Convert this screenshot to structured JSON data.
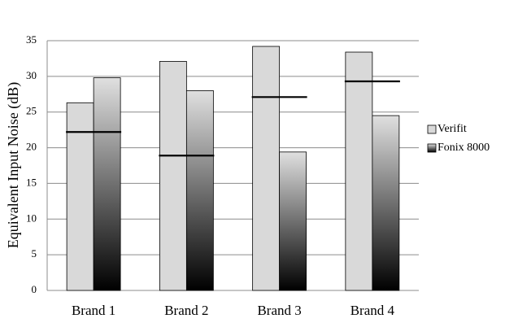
{
  "chart_data": {
    "type": "bar",
    "y_label": "Equivalent Input Noise (dB)",
    "categories": [
      "Brand 1",
      "Brand 2",
      "Brand 3",
      "Brand 4"
    ],
    "series": [
      {
        "name": "Verifit",
        "color": "#d9d9d9",
        "values": [
          26.3,
          32.1,
          34.2,
          33.4
        ]
      },
      {
        "name": "Fonix 8000",
        "color": [
          "#e0e0e0",
          "#000000"
        ],
        "values": [
          29.8,
          28.0,
          19.4,
          24.5
        ]
      }
    ],
    "reference_lines": {
      "color": "#000000",
      "values": [
        22.2,
        18.9,
        27.1,
        29.3
      ]
    },
    "ylim": [
      0,
      35
    ],
    "yticks": [
      0,
      5,
      10,
      15,
      20,
      25,
      30,
      35
    ],
    "grid": true,
    "legend": "right"
  }
}
